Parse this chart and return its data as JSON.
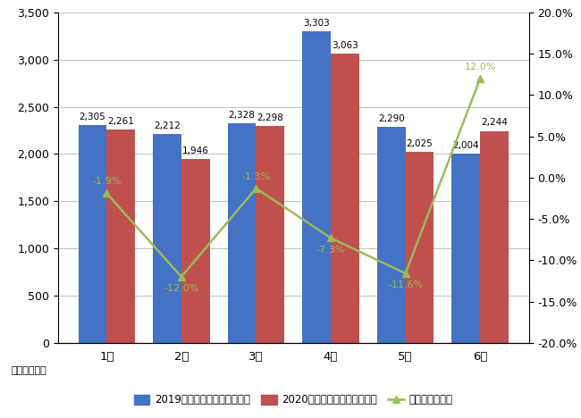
{
  "months": [
    "1月",
    "2月",
    "3月",
    "4月",
    "5月",
    "6月"
  ],
  "values_2019": [
    2305,
    2212,
    2328,
    3303,
    2290,
    2004
  ],
  "values_2020": [
    2261,
    1946,
    2298,
    3063,
    2025,
    2244
  ],
  "growth_rate": [
    -1.9,
    -12.0,
    -1.3,
    -7.3,
    -11.6,
    12.0
  ],
  "bar_color_2019": "#4472C4",
  "bar_color_2020": "#C0504D",
  "line_color": "#9BBB59",
  "ylim_left": [
    0,
    3500
  ],
  "ylim_right": [
    -20.0,
    20.0
  ],
  "yticks_left": [
    0,
    500,
    1000,
    1500,
    2000,
    2500,
    3000,
    3500
  ],
  "yticks_right": [
    -20.0,
    -15.0,
    -10.0,
    -5.0,
    0.0,
    5.0,
    10.0,
    15.0,
    20.0
  ],
  "legend_2019": "2019年の新規求職者数（人）",
  "legend_2020": "2020年の新規求職者数（人）",
  "legend_line": "前年同月増減率",
  "unit_label": "（単位：人）",
  "bar_width": 0.38,
  "background_color": "#FFFFFF",
  "grid_color": "#C0C0C0",
  "annotation_2019": [
    2305,
    2212,
    2328,
    3303,
    2290,
    2004
  ],
  "annotation_2020": [
    2261,
    1946,
    2298,
    3063,
    2025,
    2244
  ],
  "annotation_rate": [
    "-1.9%",
    "-12.0%",
    "-1.3%",
    "-7.3%",
    "-11.6%",
    "12.0%"
  ],
  "rate_va": [
    "bottom",
    "top",
    "bottom",
    "top",
    "top",
    "bottom"
  ],
  "rate_offset": [
    0.9,
    -0.9,
    0.9,
    -0.9,
    -0.9,
    0.9
  ]
}
